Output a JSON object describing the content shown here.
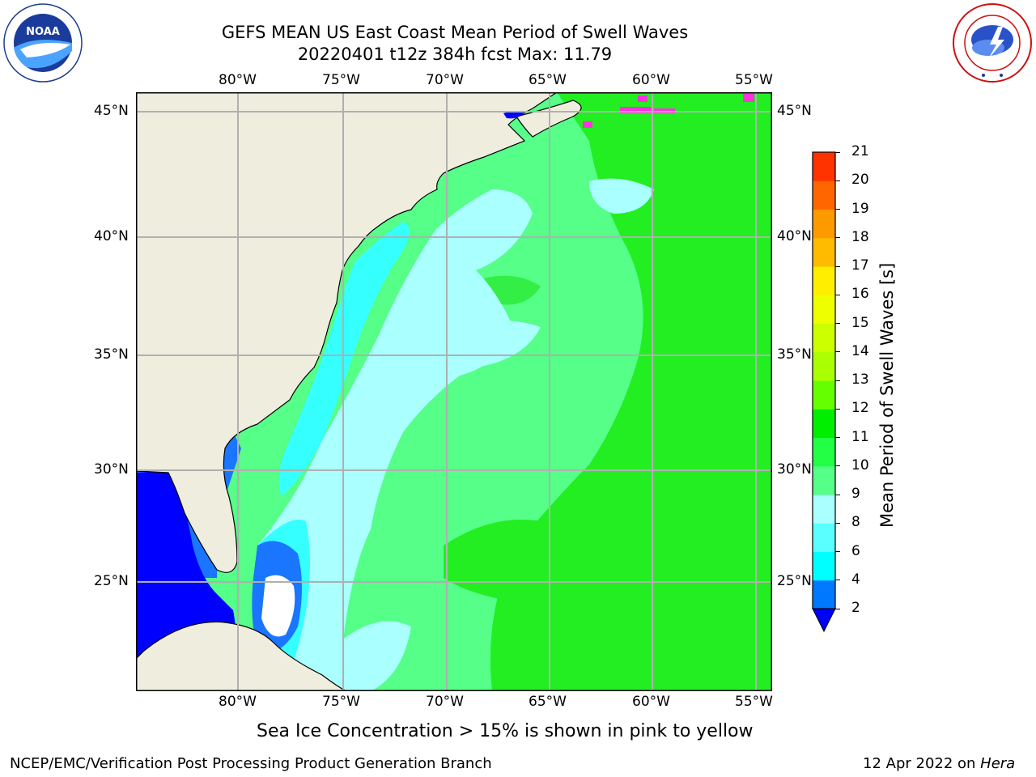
{
  "header": {
    "title_line1": "GEFS MEAN US East Coast Mean Period of Swell Waves",
    "title_line2": "20220401 t12z 384h fcst   Max: 11.79"
  },
  "logos": {
    "left": {
      "name": "NOAA",
      "ring_text": "NATIONAL OCEANIC AND ATMOSPHERIC ADMINISTRATION",
      "ring_text_bottom": "U.S. DEPARTMENT OF COMMERCE"
    },
    "right": {
      "ring_text": "NATIONAL WEATHER SERVICE"
    }
  },
  "map": {
    "lon_labels": [
      "80°W",
      "75°W",
      "70°W",
      "65°W",
      "60°W",
      "55°W"
    ],
    "lat_labels": [
      "45°N",
      "40°N",
      "35°N",
      "30°N",
      "25°N"
    ],
    "colors": {
      "land": "#efedde",
      "gridline": "#b0b0b0",
      "swell_2": "#0000ff",
      "swell_4": "#1a75ff",
      "swell_6": "#36ffff",
      "swell_8": "#a8ffff",
      "swell_9": "#55ff88",
      "swell_10": "#22ff22",
      "sea_ice": "#ff33dd"
    }
  },
  "colorbar": {
    "label": "Mean Period of Swell Waves [s]",
    "ticks": [
      "2",
      "4",
      "6",
      "8",
      "9",
      "10",
      "11",
      "12",
      "13",
      "14",
      "15",
      "16",
      "17",
      "18",
      "19",
      "20",
      "21"
    ],
    "colors": [
      "#0078ff",
      "#00ffff",
      "#5affff",
      "#aaffff",
      "#55ff88",
      "#22ff44",
      "#00ee00",
      "#66ff00",
      "#aaff00",
      "#ccff00",
      "#eeff00",
      "#ffee00",
      "#ffbb00",
      "#ff9900",
      "#ff6600",
      "#ff3300",
      "#ff0000"
    ],
    "under_color": "#0000ff"
  },
  "note": "Sea Ice Concentration > 15% is shown in pink to yellow",
  "footer": {
    "left": "NCEP/EMC/Verification Post Processing Product Generation Branch",
    "right_date": "12 Apr 2022 on ",
    "right_machine": "Hera"
  }
}
